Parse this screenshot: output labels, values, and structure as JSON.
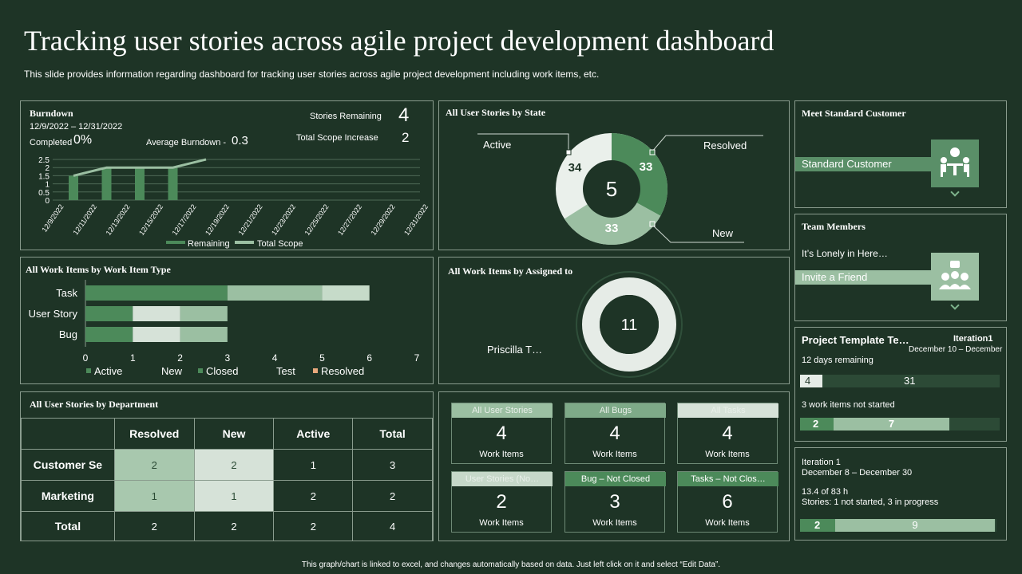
{
  "header": {
    "title": "Tracking user stories across agile project development dashboard",
    "subtitle": "This slide provides information regarding dashboard for tracking user stories across agile project development including work items, etc."
  },
  "burndown": {
    "title": "Burndown",
    "date_range": "12/9/2022 – 12/31/2022",
    "completed_label": "Completed",
    "completed_value": "0%",
    "avg_label": "Average Burndown -",
    "avg_value": "0.3",
    "stories_remaining_label": "Stories Remaining",
    "stories_remaining_value": "4",
    "scope_increase_label": "Total Scope Increase",
    "scope_increase_value": "2",
    "legend_remaining": "Remaining",
    "legend_total_scope": "Total Scope"
  },
  "state": {
    "title": "All User Stories by State",
    "center": "5",
    "active_label": "Active",
    "resolved_label": "Resolved",
    "new_label": "New",
    "active_value": "34",
    "resolved_value": "33",
    "new_value": "33"
  },
  "customer": {
    "title": "Meet Standard Customer",
    "label": "Standard Customer"
  },
  "team": {
    "title": "Team Members",
    "lonely": "It’s Lonely in Here…",
    "invite": "Invite  a Friend"
  },
  "worktype": {
    "title": "All Work Items by Work Item Type",
    "legend": [
      "Active",
      "New",
      "Closed",
      "Test",
      "Resolved"
    ]
  },
  "assigned": {
    "title": "All Work Items by Assigned to",
    "center": "11",
    "person": "Priscilla T…"
  },
  "template": {
    "title": "Project Template Te…",
    "iteration": "Iteration1",
    "dates": "December 10 – December",
    "days_remaining": "12 days remaining",
    "bar1_done": "4",
    "bar1_rest": "31",
    "not_started": "3 work items not started",
    "bar2_done": "2",
    "bar2_rest": "7"
  },
  "iteration": {
    "name": "Iteration 1",
    "dates": "December 8 – December 30",
    "hours": "13.4 of 83 h",
    "stories": "Stories: 1 not started, 3 in progress",
    "bar_done": "2",
    "bar_rest": "9"
  },
  "department": {
    "title": "All User Stories by Department",
    "headers": [
      "Resolved",
      "New",
      "Active",
      "Total"
    ],
    "rows": [
      {
        "label": "Customer  Se",
        "cells": [
          "2",
          "2",
          "1",
          "3"
        ]
      },
      {
        "label": "Marketing",
        "cells": [
          "1",
          "1",
          "2",
          "2"
        ]
      },
      {
        "label": "Total",
        "cells": [
          "2",
          "2",
          "2",
          "4"
        ]
      }
    ]
  },
  "cards": [
    {
      "label": "All User Stories",
      "value": "4",
      "sub": "Work Items"
    },
    {
      "label": "All Bugs",
      "value": "4",
      "sub": "Work Items"
    },
    {
      "label": "All Tasks",
      "value": "4",
      "sub": "Work Items"
    },
    {
      "label": "User Stories (No…",
      "value": "2",
      "sub": "Work Items"
    },
    {
      "label": "Bug – Not Closed",
      "value": "3",
      "sub": "Work Items"
    },
    {
      "label": "Tasks – Not Clos…",
      "value": "6",
      "sub": "Work Items"
    }
  ],
  "footer": "This graph/chart is linked to excel, and changes automatically based on data. Just left click on it and select “Edit Data”.",
  "chart_data": [
    {
      "type": "bar",
      "title": "Burndown",
      "categories": [
        "12/9/2022",
        "12/11/2022",
        "12/13/2022",
        "12/15/2022",
        "12/17/2022",
        "12/19/2022",
        "12/21/2022",
        "12/23/2022",
        "12/25/2022",
        "12/27/2022",
        "12/29/2022",
        "12/31/2022"
      ],
      "yticks": [
        "2.5",
        "2",
        "1.5",
        "1",
        "0.5",
        "0"
      ],
      "ylim": [
        0,
        2.5
      ],
      "series": [
        {
          "name": "Remaining",
          "type": "bar",
          "values": [
            1.5,
            2,
            2,
            2,
            null,
            null,
            null,
            null,
            null,
            null,
            null,
            null
          ]
        },
        {
          "name": "Total Scope",
          "type": "line",
          "values": [
            1.5,
            2,
            2,
            2,
            2.5,
            null,
            null,
            null,
            null,
            null,
            null,
            null
          ]
        }
      ]
    },
    {
      "type": "bar",
      "orientation": "horizontal-stacked",
      "title": "All Work Items by Work Item Type",
      "categories": [
        "Task",
        "User Story",
        "Bug"
      ],
      "xticks": [
        "0",
        "1",
        "2",
        "3",
        "4",
        "5",
        "6",
        "7"
      ],
      "xlim": [
        0,
        7
      ],
      "series": [
        {
          "name": "Active",
          "values": [
            3,
            1,
            1
          ]
        },
        {
          "name": "New",
          "values": [
            0,
            0,
            0
          ]
        },
        {
          "name": "Closed",
          "values": [
            2,
            1,
            1
          ]
        },
        {
          "name": "Test",
          "values": [
            1,
            1,
            1
          ]
        },
        {
          "name": "Resolved",
          "values": [
            0,
            0,
            0
          ]
        }
      ]
    },
    {
      "type": "pie",
      "title": "All User Stories by State",
      "categories": [
        "Resolved",
        "New",
        "Active"
      ],
      "values": [
        33,
        33,
        34
      ]
    }
  ]
}
